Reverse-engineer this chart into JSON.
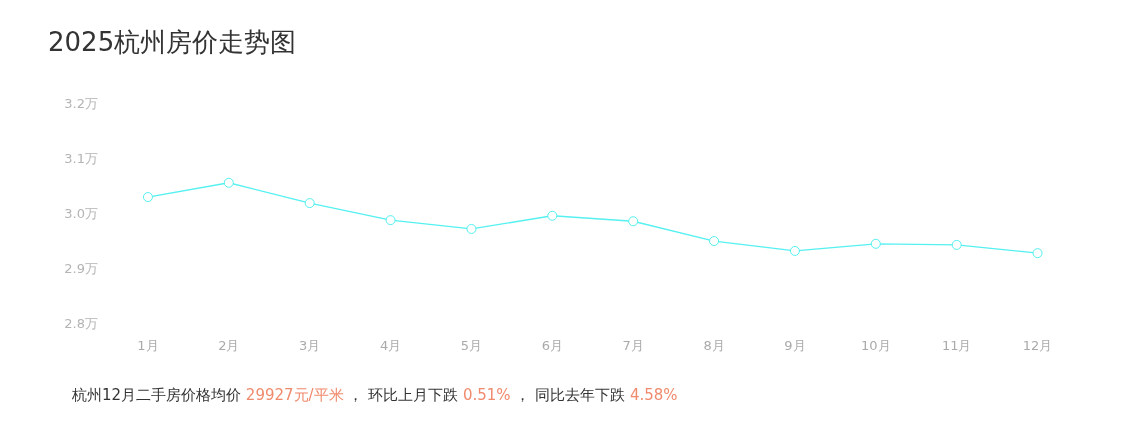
{
  "chart_data": {
    "type": "line",
    "title": "2025杭州房价走势图",
    "categories": [
      "1月",
      "2月",
      "3月",
      "4月",
      "5月",
      "6月",
      "7月",
      "8月",
      "9月",
      "10月",
      "11月",
      "12月"
    ],
    "series": [
      {
        "color": "#55f0f0",
        "values": [
          3.029,
          3.055,
          3.018,
          2.987,
          2.971,
          2.995,
          2.985,
          2.949,
          2.931,
          2.944,
          2.942,
          2.927
        ]
      }
    ],
    "ylim": [
      2.8,
      3.2
    ],
    "yticks": [
      {
        "value": 2.8,
        "label": "2.8万"
      },
      {
        "value": 2.9,
        "label": "2.9万"
      },
      {
        "value": 3.0,
        "label": "3.0万"
      },
      {
        "value": 3.1,
        "label": "3.1万"
      },
      {
        "value": 3.2,
        "label": "3.2万"
      }
    ],
    "grid": false,
    "marker": "circle",
    "line_style": "solid",
    "annotations": [
      "杭州12月二手房价格均价",
      "29927元/平米",
      "，  环比上月下跌",
      "0.51%",
      "，  同比去年下跌",
      "4.58%"
    ]
  }
}
